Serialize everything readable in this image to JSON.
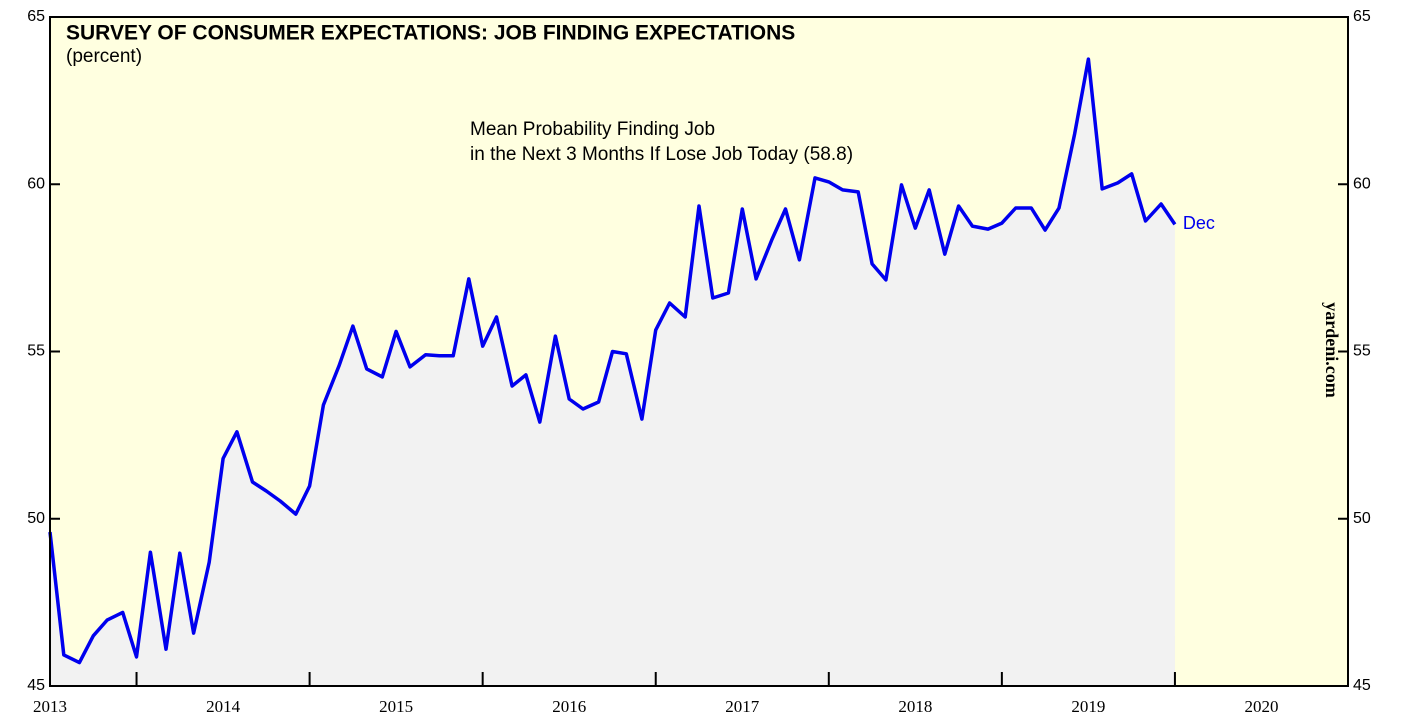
{
  "chart_data": {
    "type": "area",
    "title": "SURVEY OF CONSUMER EXPECTATIONS: JOB FINDING EXPECTATIONS",
    "subtitle": "(percent)",
    "annotations": [
      "Mean Probability Finding Job",
      "in the Next 3 Months If Lose Job Today (58.8)"
    ],
    "end_label": "Dec",
    "source": "yardeni.com",
    "color": "#0000ee",
    "fill": "#f2f2f2",
    "background": "#ffffe0",
    "xlim": [
      2013.5,
      2021
    ],
    "xticks": [
      2013,
      2014,
      2015,
      2016,
      2017,
      2018,
      2019,
      2020
    ],
    "ylim": [
      45,
      65
    ],
    "yticks": [
      45,
      50,
      55,
      60,
      65
    ],
    "x": [
      2013.5,
      2013.58,
      2013.67,
      2013.75,
      2013.83,
      2013.92,
      2014,
      2014.08,
      2014.17,
      2014.25,
      2014.33,
      2014.42,
      2014.5,
      2014.58,
      2014.67,
      2014.75,
      2014.83,
      2014.92,
      2015,
      2015.08,
      2015.17,
      2015.25,
      2015.33,
      2015.42,
      2015.5,
      2015.58,
      2015.67,
      2015.75,
      2015.83,
      2015.92,
      2016,
      2016.08,
      2016.17,
      2016.25,
      2016.33,
      2016.42,
      2016.5,
      2016.58,
      2016.67,
      2016.75,
      2016.83,
      2016.92,
      2017,
      2017.08,
      2017.17,
      2017.25,
      2017.33,
      2017.42,
      2017.5,
      2017.58,
      2017.67,
      2017.75,
      2017.83,
      2017.92,
      2018,
      2018.08,
      2018.17,
      2018.25,
      2018.33,
      2018.42,
      2018.5,
      2018.58,
      2018.67,
      2018.75,
      2018.83,
      2018.92,
      2019,
      2019.08,
      2019.17,
      2019.25,
      2019.33,
      2019.42,
      2019.5,
      2019.58,
      2019.67,
      2019.75,
      2019.83,
      2019.92,
      2020
    ],
    "values": [
      49.6,
      45.93,
      45.7,
      46.5,
      46.97,
      47.2,
      45.87,
      49.0,
      46.1,
      48.97,
      46.58,
      48.7,
      51.8,
      52.6,
      51.1,
      50.83,
      50.53,
      50.14,
      50.98,
      53.4,
      54.57,
      55.76,
      54.48,
      54.24,
      55.6,
      54.54,
      54.9,
      54.87,
      54.87,
      57.17,
      55.16,
      56.03,
      53.97,
      54.3,
      52.89,
      55.46,
      53.58,
      53.28,
      53.49,
      55.0,
      54.93,
      52.98,
      55.64,
      56.45,
      56.03,
      59.35,
      56.6,
      56.75,
      59.26,
      57.17,
      58.33,
      59.26,
      57.74,
      60.19,
      60.07,
      59.83,
      59.77,
      57.62,
      57.14,
      59.98,
      58.69,
      59.83,
      57.91,
      59.35,
      58.75,
      58.66,
      58.84,
      59.29,
      59.29,
      58.63,
      59.29,
      61.5,
      63.74,
      59.86,
      60.04,
      60.31,
      58.9,
      59.41,
      58.8
    ]
  }
}
